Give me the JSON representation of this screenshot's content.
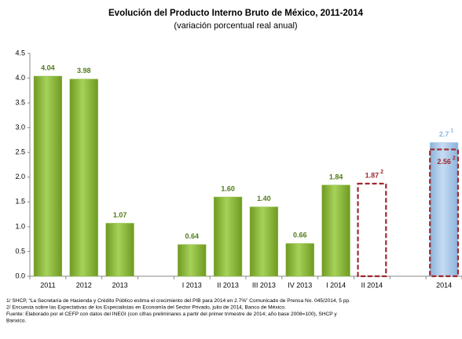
{
  "chart_data": {
    "type": "bar",
    "title": "Evolución del Producto Interno Bruto de México, 2011-2014",
    "subtitle": "(variación porcentual real anual)",
    "categories": [
      "2011",
      "2012",
      "2013",
      null,
      "I 2013",
      "II 2013",
      "III 2013",
      "IV 2013",
      "I 2014",
      "II 2014",
      null,
      "2014"
    ],
    "series": [
      {
        "color": "#8cbd3c",
        "label_color": "#4f7a17",
        "style": "solid",
        "values": [
          4.04,
          3.98,
          1.07,
          null,
          0.64,
          1.6,
          1.4,
          0.66,
          1.84,
          null,
          null,
          null
        ],
        "value_labels": [
          "4.04",
          "3.98",
          "1.07",
          null,
          "0.64",
          "1.60",
          "1.40",
          "0.66",
          "1.84",
          null,
          null,
          null
        ]
      },
      {
        "color": "#9dc3e6",
        "label_color": "#8db4e2",
        "style": "solid",
        "values": [
          null,
          null,
          null,
          null,
          null,
          null,
          null,
          null,
          null,
          null,
          null,
          2.7
        ],
        "value_labels": [
          null,
          null,
          null,
          null,
          null,
          null,
          null,
          null,
          null,
          null,
          null,
          "2.7"
        ],
        "value_notes": [
          null,
          null,
          null,
          null,
          null,
          null,
          null,
          null,
          null,
          null,
          null,
          "1"
        ]
      },
      {
        "color": "#a0282d",
        "label_color": "#a0282d",
        "style": "dashed",
        "values": [
          null,
          null,
          null,
          null,
          null,
          null,
          null,
          null,
          null,
          1.87,
          null,
          2.56
        ],
        "value_labels": [
          null,
          null,
          null,
          null,
          null,
          null,
          null,
          null,
          null,
          "1.87",
          null,
          "2.56"
        ],
        "value_notes": [
          null,
          null,
          null,
          null,
          null,
          null,
          null,
          null,
          null,
          "2",
          null,
          "2"
        ]
      }
    ],
    "ylim": [
      0,
      4.5
    ],
    "yticks": [
      {
        "value": 0,
        "label": "0.0"
      },
      {
        "value": 0.5,
        "label": "0.5"
      },
      {
        "value": 1,
        "label": "1.0"
      },
      {
        "value": 1.5,
        "label": "1.5"
      },
      {
        "value": 2,
        "label": "2.0"
      },
      {
        "value": 2.5,
        "label": "2.5"
      },
      {
        "value": 3,
        "label": "3.0"
      },
      {
        "value": 3.5,
        "label": "3.5"
      },
      {
        "value": 4,
        "label": "4.0"
      },
      {
        "value": 4.5,
        "label": "4.5"
      }
    ],
    "footnotes": [
      "1/ SHCP, “La Secretaría de Hacienda y Crédito Público estima el crecimiento del PIB para 2014 en 2.7%” Comunicado de Prensa No. 045/2014, 5 pp.",
      "2/ Encuesta sobre las Expectativas de los Especialistas en Economía del Sector Privado, julio de 2014, Banco de México.",
      "Fuente: Elaborado por el CEFP con datos del INEGI (con cifras preliminares a partir del primer trimestre de 2014; año base 2008=100), SHCP y",
      "Banxico."
    ]
  }
}
